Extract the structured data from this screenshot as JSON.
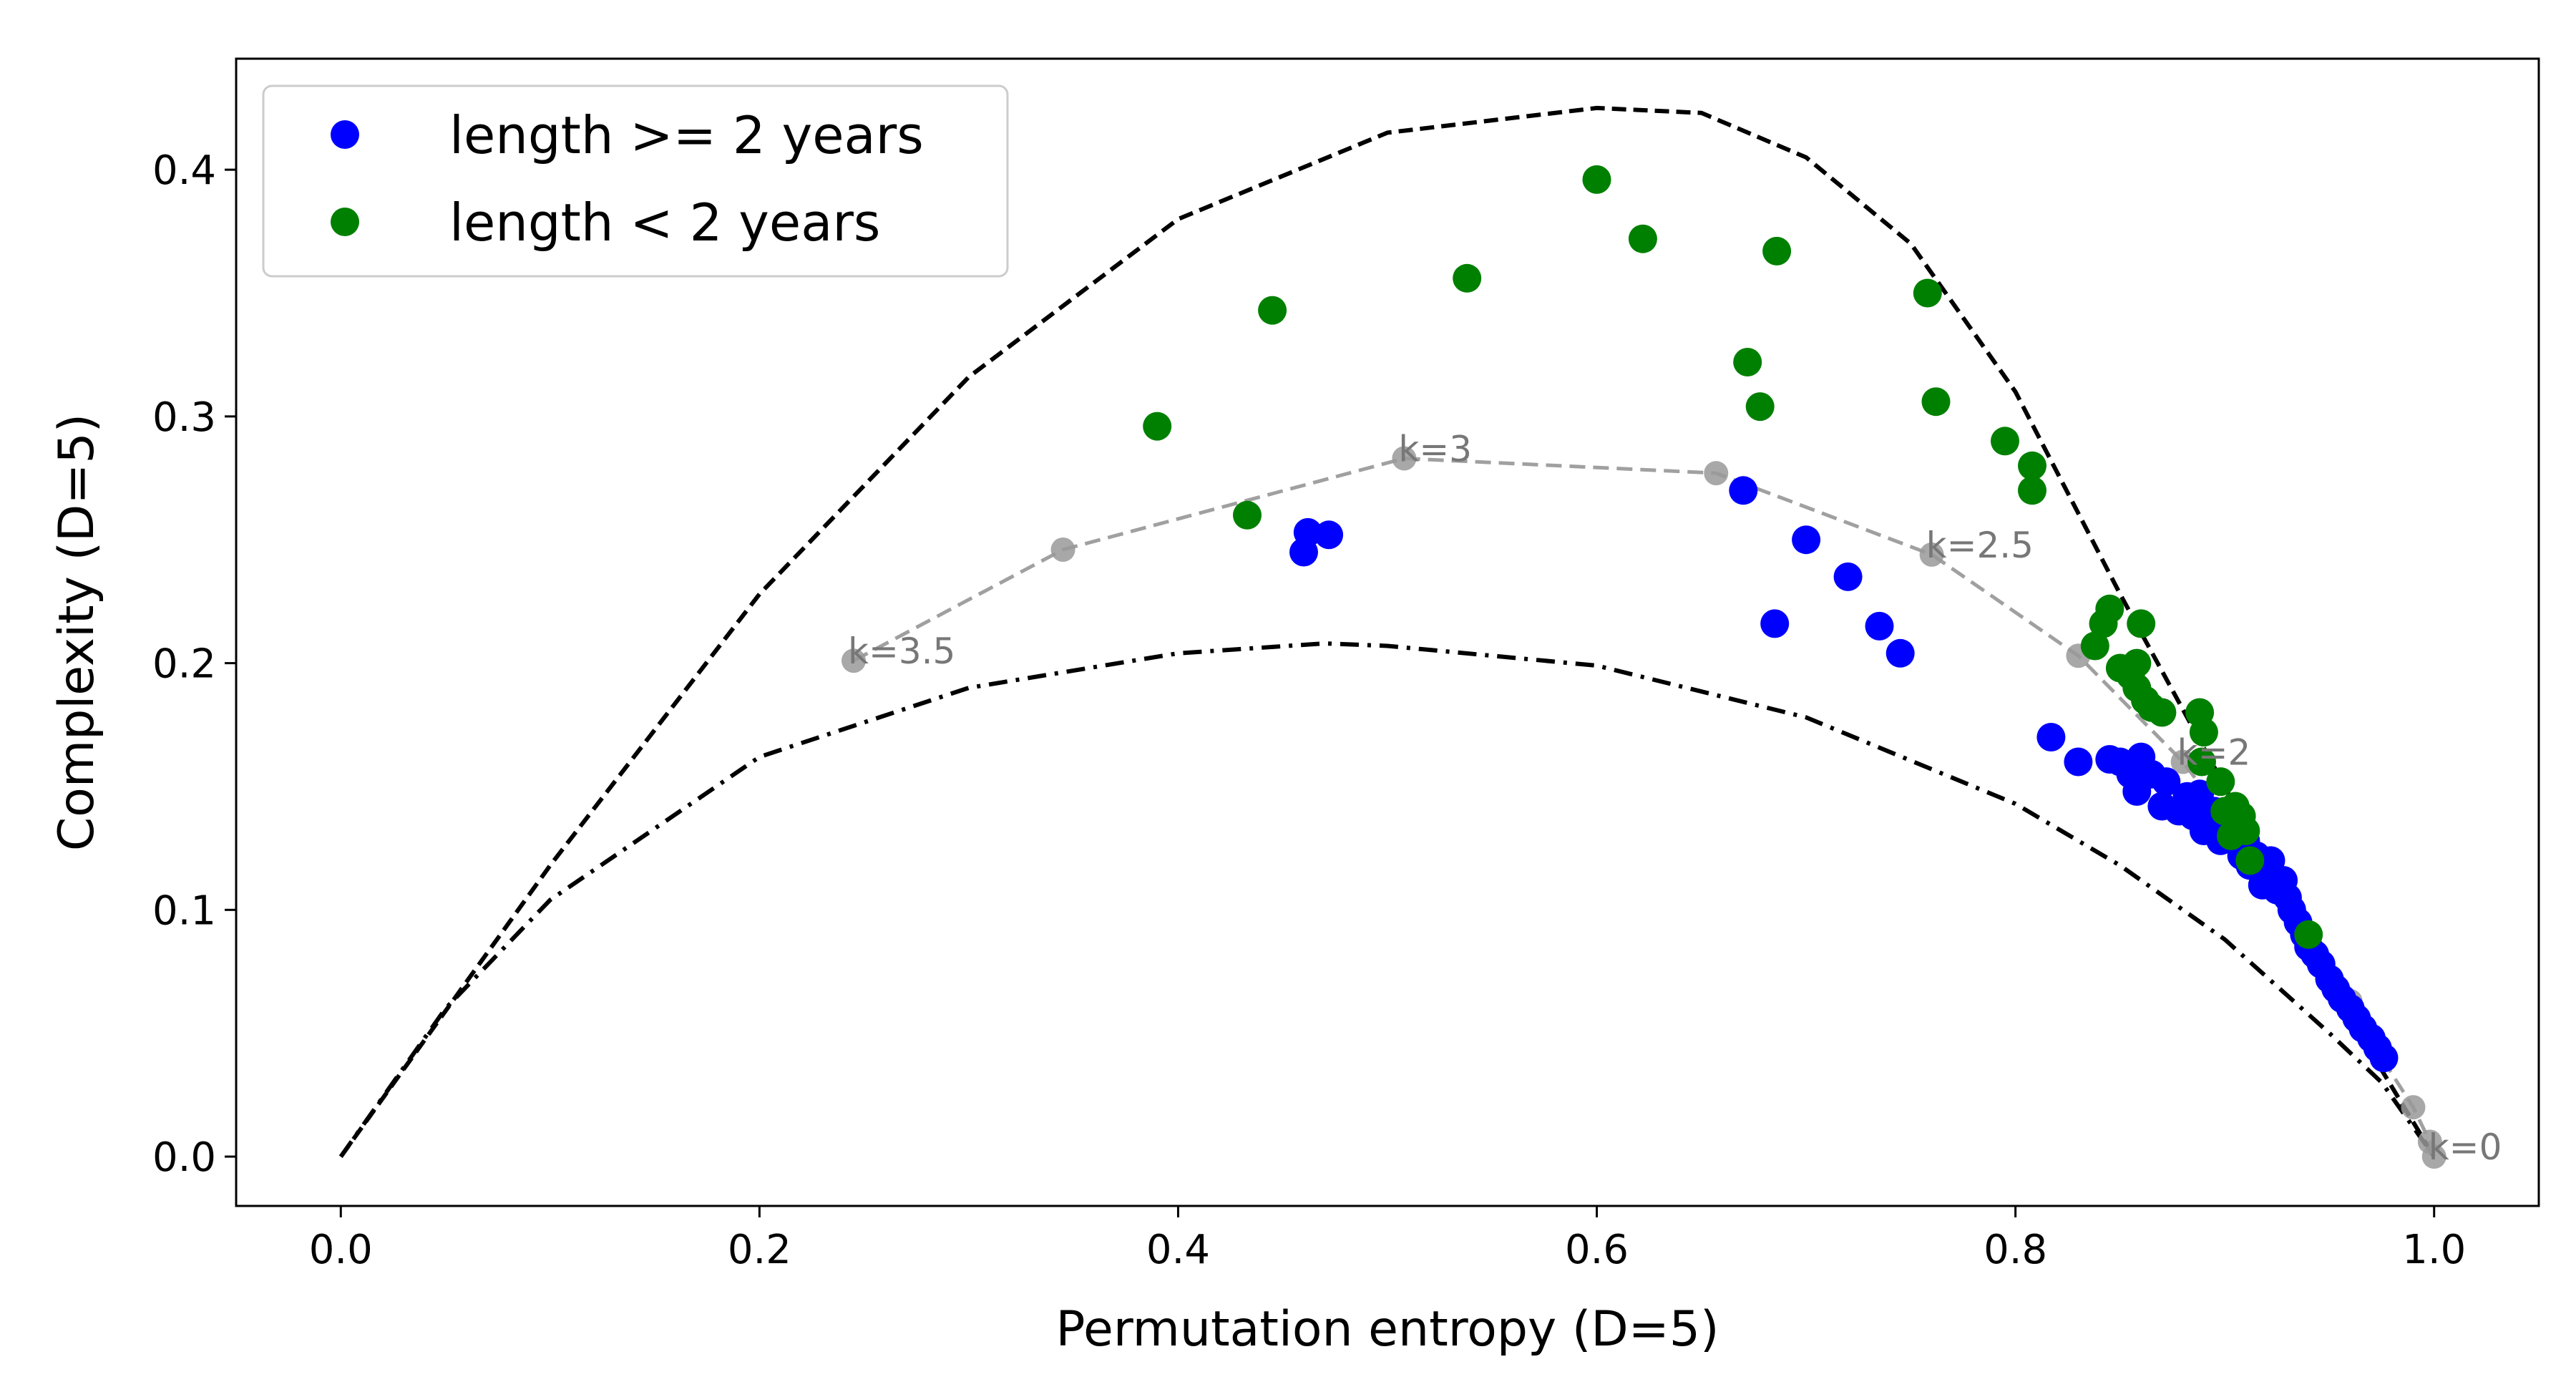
{
  "chart_data": {
    "type": "scatter",
    "xlabel": "Permutation entropy (D=5)",
    "ylabel": "Complexity (D=5)",
    "xlim": [
      -0.05,
      1.05
    ],
    "ylim": [
      -0.02,
      0.445
    ],
    "x_ticks": [
      {
        "value": 0.0,
        "label": "0.0"
      },
      {
        "value": 0.2,
        "label": "0.2"
      },
      {
        "value": 0.4,
        "label": "0.4"
      },
      {
        "value": 0.6,
        "label": "0.6"
      },
      {
        "value": 0.8,
        "label": "0.8"
      },
      {
        "value": 1.0,
        "label": "1.0"
      }
    ],
    "y_ticks": [
      {
        "value": 0.0,
        "label": "0.0"
      },
      {
        "value": 0.1,
        "label": "0.1"
      },
      {
        "value": 0.2,
        "label": "0.2"
      },
      {
        "value": 0.3,
        "label": "0.3"
      },
      {
        "value": 0.4,
        "label": "0.4"
      }
    ],
    "grid": false,
    "legend_position": "top-left",
    "series": [
      {
        "name": "length >= 2 years",
        "color": "#0000ff",
        "points": [
          [
            0.46,
            0.245
          ],
          [
            0.462,
            0.253
          ],
          [
            0.472,
            0.252
          ],
          [
            0.67,
            0.27
          ],
          [
            0.7,
            0.25
          ],
          [
            0.72,
            0.235
          ],
          [
            0.685,
            0.216
          ],
          [
            0.735,
            0.215
          ],
          [
            0.745,
            0.204
          ],
          [
            0.817,
            0.17
          ],
          [
            0.83,
            0.16
          ],
          [
            0.845,
            0.161
          ],
          [
            0.85,
            0.16
          ],
          [
            0.855,
            0.155
          ],
          [
            0.86,
            0.162
          ],
          [
            0.858,
            0.148
          ],
          [
            0.865,
            0.155
          ],
          [
            0.87,
            0.142
          ],
          [
            0.872,
            0.152
          ],
          [
            0.878,
            0.14
          ],
          [
            0.882,
            0.146
          ],
          [
            0.885,
            0.138
          ],
          [
            0.888,
            0.147
          ],
          [
            0.89,
            0.132
          ],
          [
            0.895,
            0.14
          ],
          [
            0.898,
            0.128
          ],
          [
            0.9,
            0.135
          ],
          [
            0.905,
            0.13
          ],
          [
            0.908,
            0.122
          ],
          [
            0.91,
            0.128
          ],
          [
            0.912,
            0.118
          ],
          [
            0.915,
            0.122
          ],
          [
            0.918,
            0.11
          ],
          [
            0.92,
            0.115
          ],
          [
            0.922,
            0.12
          ],
          [
            0.925,
            0.108
          ],
          [
            0.928,
            0.112
          ],
          [
            0.93,
            0.105
          ],
          [
            0.932,
            0.1
          ],
          [
            0.935,
            0.095
          ],
          [
            0.938,
            0.09
          ],
          [
            0.94,
            0.085
          ],
          [
            0.943,
            0.082
          ],
          [
            0.946,
            0.078
          ],
          [
            0.95,
            0.072
          ],
          [
            0.953,
            0.068
          ],
          [
            0.956,
            0.064
          ],
          [
            0.96,
            0.06
          ],
          [
            0.963,
            0.056
          ],
          [
            0.966,
            0.052
          ],
          [
            0.97,
            0.048
          ],
          [
            0.973,
            0.044
          ],
          [
            0.976,
            0.04
          ]
        ]
      },
      {
        "name": "length < 2 years",
        "color": "#008000",
        "points": [
          [
            0.39,
            0.296
          ],
          [
            0.433,
            0.26
          ],
          [
            0.445,
            0.343
          ],
          [
            0.538,
            0.356
          ],
          [
            0.6,
            0.396
          ],
          [
            0.622,
            0.372
          ],
          [
            0.686,
            0.367
          ],
          [
            0.672,
            0.322
          ],
          [
            0.678,
            0.304
          ],
          [
            0.758,
            0.35
          ],
          [
            0.762,
            0.306
          ],
          [
            0.795,
            0.29
          ],
          [
            0.808,
            0.28
          ],
          [
            0.808,
            0.27
          ],
          [
            0.838,
            0.207
          ],
          [
            0.845,
            0.222
          ],
          [
            0.842,
            0.216
          ],
          [
            0.85,
            0.198
          ],
          [
            0.858,
            0.2
          ],
          [
            0.86,
            0.216
          ],
          [
            0.855,
            0.195
          ],
          [
            0.858,
            0.19
          ],
          [
            0.862,
            0.185
          ],
          [
            0.865,
            0.182
          ],
          [
            0.87,
            0.18
          ],
          [
            0.888,
            0.18
          ],
          [
            0.89,
            0.172
          ],
          [
            0.889,
            0.16
          ],
          [
            0.898,
            0.152
          ],
          [
            0.9,
            0.14
          ],
          [
            0.905,
            0.142
          ],
          [
            0.908,
            0.138
          ],
          [
            0.903,
            0.13
          ],
          [
            0.91,
            0.132
          ],
          [
            0.912,
            0.12
          ],
          [
            0.94,
            0.09
          ]
        ]
      }
    ],
    "reference_curves": [
      {
        "name": "upper bound",
        "style": "dashed",
        "color": "#000000",
        "points": [
          [
            0,
            0
          ],
          [
            0.1,
            0.118
          ],
          [
            0.2,
            0.228
          ],
          [
            0.3,
            0.316
          ],
          [
            0.4,
            0.38
          ],
          [
            0.5,
            0.415
          ],
          [
            0.6,
            0.425
          ],
          [
            0.65,
            0.423
          ],
          [
            0.7,
            0.405
          ],
          [
            0.75,
            0.37
          ],
          [
            0.8,
            0.31
          ],
          [
            0.85,
            0.228
          ],
          [
            0.9,
            0.15
          ],
          [
            0.95,
            0.065
          ],
          [
            0.975,
            0.035
          ],
          [
            1.0,
            0.0
          ]
        ]
      },
      {
        "name": "lower bound",
        "style": "dashdot",
        "color": "#000000",
        "points": [
          [
            0,
            0
          ],
          [
            0.05,
            0.06
          ],
          [
            0.1,
            0.104
          ],
          [
            0.2,
            0.162
          ],
          [
            0.3,
            0.19
          ],
          [
            0.4,
            0.204
          ],
          [
            0.47,
            0.208
          ],
          [
            0.5,
            0.207
          ],
          [
            0.6,
            0.199
          ],
          [
            0.7,
            0.178
          ],
          [
            0.8,
            0.143
          ],
          [
            0.85,
            0.118
          ],
          [
            0.9,
            0.088
          ],
          [
            0.95,
            0.05
          ],
          [
            0.975,
            0.03
          ],
          [
            1.0,
            0.0
          ]
        ]
      },
      {
        "name": "k path",
        "style": "dashed",
        "color": "#a0a0a0",
        "points": [
          [
            0.245,
            0.201
          ],
          [
            0.345,
            0.246
          ],
          [
            0.508,
            0.283
          ],
          [
            0.657,
            0.277
          ],
          [
            0.76,
            0.244
          ],
          [
            0.83,
            0.203
          ],
          [
            0.88,
            0.16
          ],
          [
            0.912,
            0.124
          ],
          [
            0.94,
            0.09
          ],
          [
            0.96,
            0.063
          ],
          [
            0.975,
            0.04
          ],
          [
            0.99,
            0.02
          ],
          [
            0.998,
            0.006
          ],
          [
            1.0,
            0.0
          ]
        ]
      }
    ],
    "annotations": [
      {
        "text": "k=3.5",
        "x": 0.245,
        "y": 0.201
      },
      {
        "text": "k=3",
        "x": 0.508,
        "y": 0.283
      },
      {
        "text": "k=2.5",
        "x": 0.76,
        "y": 0.244
      },
      {
        "text": "k=2",
        "x": 0.88,
        "y": 0.16
      },
      {
        "text": "k=0",
        "x": 1.0,
        "y": 0.0
      }
    ]
  }
}
